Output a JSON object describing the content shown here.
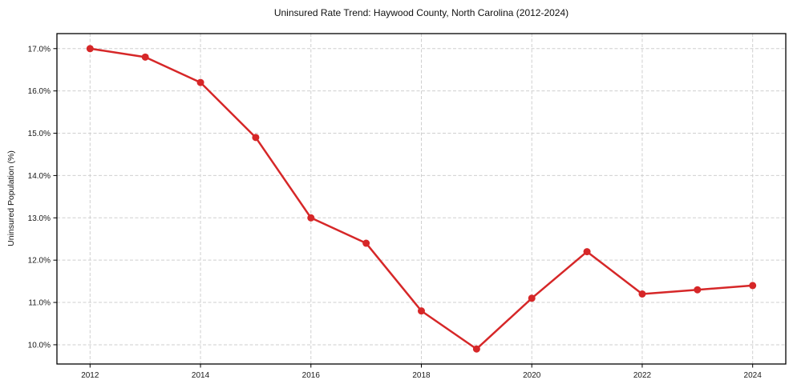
{
  "title": "Uninsured Rate Trend: Haywood County, North Carolina (2012-2024)",
  "chart_data": {
    "type": "line",
    "title": "Uninsured Rate Trend: Haywood County, North Carolina (2012-2024)",
    "xlabel": "",
    "ylabel": "Uninsured Population (%)",
    "x": [
      2012,
      2013,
      2014,
      2015,
      2016,
      2017,
      2018,
      2019,
      2020,
      2021,
      2022,
      2023,
      2024
    ],
    "series": [
      {
        "name": "Uninsured rate",
        "values": [
          17.0,
          16.8,
          16.2,
          14.9,
          13.0,
          12.4,
          10.8,
          9.9,
          11.1,
          12.2,
          11.2,
          11.3,
          11.4
        ]
      }
    ],
    "xticks": [
      2012,
      2014,
      2016,
      2018,
      2020,
      2022,
      2024
    ],
    "xtick_labels": [
      "2012",
      "2014",
      "2016",
      "2018",
      "2020",
      "2022",
      "2024"
    ],
    "yticks": [
      10.0,
      11.0,
      12.0,
      13.0,
      14.0,
      15.0,
      16.0,
      17.0
    ],
    "ytick_labels": [
      "10.0%",
      "11.0%",
      "12.0%",
      "13.0%",
      "14.0%",
      "15.0%",
      "16.0%",
      "17.0%"
    ],
    "xlim": [
      2011.4,
      2024.6
    ],
    "ylim": [
      9.545,
      17.355
    ],
    "grid": true,
    "legend_position": "none",
    "colors": {
      "line": "#d62728",
      "marker": "#d62728",
      "grid": "#cfcfcf",
      "spine": "#000000",
      "background": "#ffffff",
      "text": "#1a1a1a"
    }
  }
}
